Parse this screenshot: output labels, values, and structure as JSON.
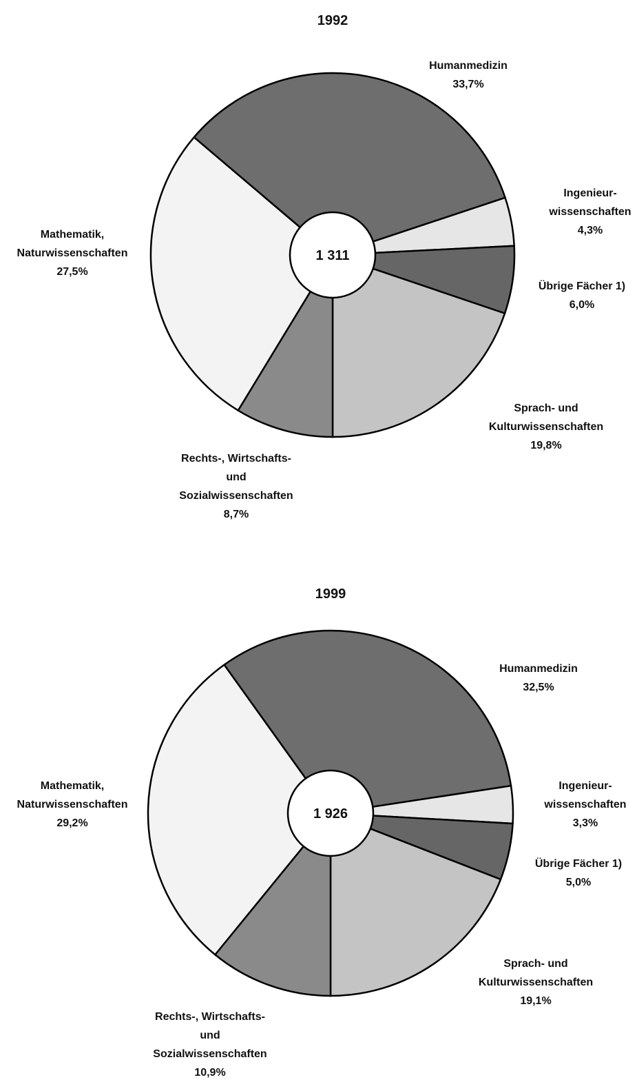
{
  "chart_data": [
    {
      "type": "pie",
      "title": "1992",
      "center_label": "1 311",
      "categories": [
        "Humanmedizin",
        "Ingenieur-\nwissenschaften",
        "Übrige Fächer 1)",
        "Sprach- und\nKulturwissenschaften",
        "Rechts-, Wirtschafts-\nund\nSozialwissenschaften",
        "Mathematik,\nNaturwissenschaften"
      ],
      "values": [
        33.7,
        4.3,
        6.0,
        19.8,
        8.7,
        27.5
      ],
      "value_labels": [
        "33,7%",
        "4,3%",
        "6,0%",
        "19,8%",
        "8,7%",
        "27,5%"
      ],
      "colors": [
        "#6e6e6e",
        "#e6e6e6",
        "#666666",
        "#c4c4c4",
        "#8a8a8a",
        "#f3f3f3"
      ]
    },
    {
      "type": "pie",
      "title": "1999",
      "center_label": "1 926",
      "categories": [
        "Humanmedizin",
        "Ingenieur-\nwissenschaften",
        "Übrige Fächer 1)",
        "Sprach- und\nKulturwissenschaften",
        "Rechts-, Wirtschafts-\nund\nSozialwissenschaften",
        "Mathematik,\nNaturwissenschaften"
      ],
      "values": [
        32.5,
        3.3,
        5.0,
        19.1,
        10.9,
        29.2
      ],
      "value_labels": [
        "32,5%",
        "3,3%",
        "5,0%",
        "19,1%",
        "10,9%",
        "29,2%"
      ],
      "colors": [
        "#6e6e6e",
        "#e6e6e6",
        "#666666",
        "#c4c4c4",
        "#8a8a8a",
        "#f3f3f3"
      ]
    }
  ]
}
